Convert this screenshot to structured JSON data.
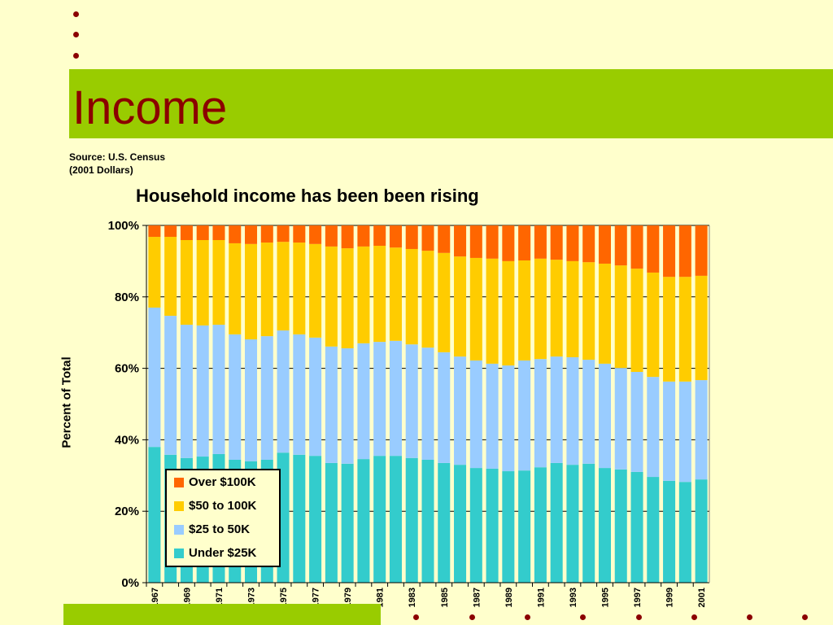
{
  "slide": {
    "title": "Income",
    "source_line1": "Source: U.S. Census",
    "source_line2": "(2001 Dollars)"
  },
  "colors": {
    "background": "#FFFFCC",
    "band": "#99CC00",
    "title": "#8B0000"
  },
  "chart_data": {
    "type": "bar",
    "stacked": true,
    "title": "Household income has been been rising",
    "xlabel": "",
    "ylabel": "Percent of Total",
    "ylim": [
      0,
      100
    ],
    "yticks": [
      "0%",
      "20%",
      "40%",
      "60%",
      "80%",
      "100%"
    ],
    "grid": true,
    "legend_position": "bottom-left inside",
    "categories": [
      "1967",
      "1968",
      "1969",
      "1970",
      "1971",
      "1972",
      "1973",
      "1974",
      "1975",
      "1976",
      "1977",
      "1978",
      "1979",
      "1980",
      "1981",
      "1982",
      "1983",
      "1984",
      "1985",
      "1986",
      "1987",
      "1988",
      "1989",
      "1990",
      "1991",
      "1992",
      "1993",
      "1994",
      "1995",
      "1996",
      "1997",
      "1998",
      "1999",
      "2000",
      "2001"
    ],
    "series": [
      {
        "name": "Under $25K",
        "color": "#33CCCC",
        "values": [
          38.0,
          35.8,
          34.9,
          35.3,
          36.0,
          34.4,
          34.0,
          34.4,
          36.4,
          35.8,
          35.5,
          33.5,
          33.3,
          34.6,
          35.5,
          35.5,
          34.9,
          34.4,
          33.5,
          33.0,
          32.1,
          31.9,
          31.2,
          31.4,
          32.3,
          33.5,
          33.0,
          33.3,
          32.1,
          31.7,
          31.0,
          29.6,
          28.5,
          28.2,
          28.9
        ]
      },
      {
        "name": "$25 to 50K",
        "color": "#99CCFF",
        "values": [
          39.0,
          38.9,
          37.3,
          36.7,
          36.2,
          35.1,
          34.1,
          34.6,
          34.2,
          33.7,
          33.1,
          32.6,
          32.3,
          32.4,
          31.9,
          32.2,
          31.8,
          31.4,
          31.0,
          30.3,
          30.1,
          29.4,
          29.6,
          30.8,
          30.3,
          29.8,
          30.1,
          29.1,
          29.2,
          28.4,
          28.0,
          28.0,
          27.8,
          28.1,
          27.8
        ]
      },
      {
        "name": "$50 to 100K",
        "color": "#FFCC00",
        "values": [
          19.8,
          22.1,
          23.7,
          23.9,
          23.7,
          25.5,
          26.7,
          26.2,
          24.8,
          25.7,
          26.2,
          28.0,
          28.0,
          27.1,
          26.9,
          26.1,
          26.7,
          27.1,
          27.8,
          28.0,
          28.7,
          29.4,
          29.2,
          28.0,
          28.1,
          27.1,
          26.9,
          27.3,
          28.0,
          28.7,
          28.9,
          29.2,
          29.3,
          29.3,
          29.2
        ]
      },
      {
        "name": "Over $100K",
        "color": "#FF6600",
        "values": [
          3.2,
          3.2,
          4.1,
          4.1,
          4.1,
          5.0,
          5.2,
          4.8,
          4.6,
          4.8,
          5.2,
          5.9,
          6.4,
          5.9,
          5.7,
          6.2,
          6.6,
          7.1,
          7.7,
          8.7,
          9.1,
          9.3,
          10.0,
          9.8,
          9.3,
          9.6,
          10.0,
          10.3,
          10.7,
          11.2,
          12.1,
          13.2,
          14.4,
          14.4,
          14.1
        ]
      }
    ]
  }
}
